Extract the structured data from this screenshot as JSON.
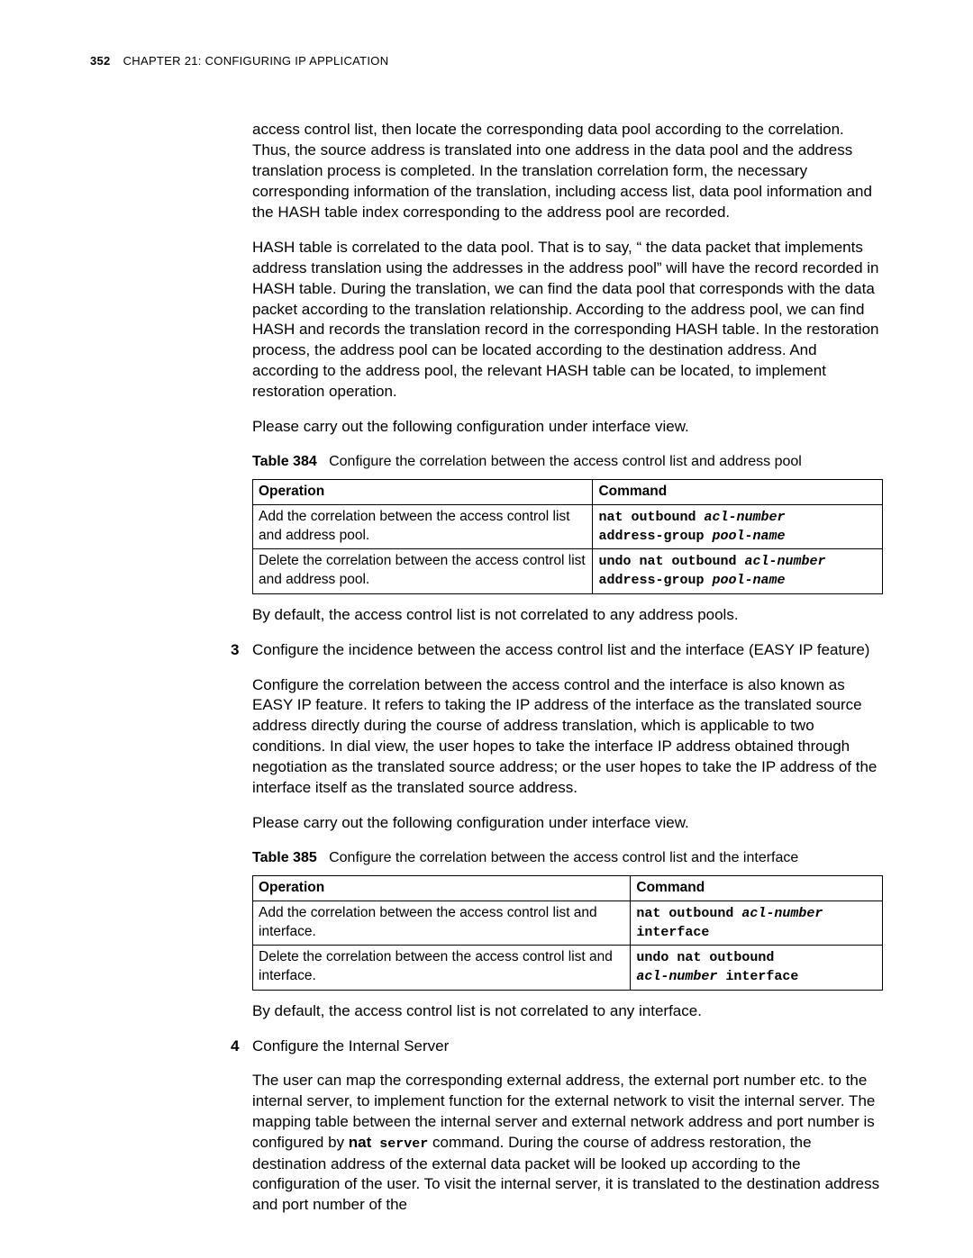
{
  "header": {
    "page_number": "352",
    "chapter_label": "CHAPTER 21: CONFIGURING IP APPLICATION"
  },
  "paragraphs": {
    "p1": "access control list, then locate the corresponding data pool according to the correlation. Thus, the source address is translated into one address in the data pool and the address translation process is completed. In the translation correlation form, the necessary corresponding information of the translation, including access list, data pool information and the HASH table index corresponding to the address pool are recorded.",
    "p2": "HASH table is correlated to the data pool. That is to say, “ the data packet that implements address translation using the addresses in the address pool” will have the record recorded in HASH table. During the translation, we can find the data pool that corresponds with the data packet according to the translation relationship. According to the address pool, we can find HASH and records the translation record in the corresponding HASH table. In the restoration process, the address pool can be located according to the destination address. And according to the address pool, the relevant HASH table can be located, to implement restoration operation.",
    "p3": "Please carry out the following configuration under interface view.",
    "p4": "By default, the access control list is not correlated to any address pools.",
    "p5": "Configure the incidence between the access control list and the interface (EASY IP feature)",
    "p6": "Configure the correlation between the access control and the interface is also known as EASY IP feature. It refers to taking the IP address of the interface as the translated source address directly during the course of address translation, which is applicable to two conditions. In dial view, the user hopes to take the interface IP address obtained through negotiation as the translated source address; or the user hopes to take the IP address of the interface itself as the translated source address.",
    "p7": "Please carry out the following configuration under interface view.",
    "p8": "By default, the access control list is not correlated to any interface.",
    "p9": "Configure the Internal Server",
    "p10_prefix": "The user can map the corresponding external address, the external port number etc. to the internal server, to implement function for the external network to visit the internal server. The mapping table between the internal server and external network address and port number is configured by ",
    "p10_nat": "nat",
    "p10_server": " server",
    "p10_suffix": " command. During the course of address restoration, the destination address of the external data packet will be looked up according to the configuration of the user. To visit the internal server, it is translated to the destination address and port number of the"
  },
  "numbers": {
    "n3": "3",
    "n4": "4"
  },
  "table384": {
    "caption_label": "Table 384",
    "caption_text": "Configure the correlation between the access control list and address pool",
    "h1": "Operation",
    "h2": "Command",
    "r1c1": "Add the correlation between the access control list and address pool.",
    "r1c2_a": "nat outbound ",
    "r1c2_b": "acl-number",
    "r1c2_c": " address-group ",
    "r1c2_d": "pool-name",
    "r2c1": "Delete the correlation between the access control list and address pool.",
    "r2c2_a": "undo nat outbound ",
    "r2c2_b": "acl-number",
    "r2c2_c": " address-group ",
    "r2c2_d": "pool-name",
    "col1_width": "54%"
  },
  "table385": {
    "caption_label": "Table 385",
    "caption_text": "Configure the correlation between the access control list and the interface",
    "h1": "Operation",
    "h2": "Command",
    "r1c1": "Add the correlation between the access control list and interface.",
    "r1c2_a": "nat outbound ",
    "r1c2_b": "acl-number",
    "r1c2_c": " interface",
    "r2c1": "Delete the correlation between the access control list and interface.",
    "r2c2_a": "undo nat outbound ",
    "r2c2_b": "acl-number",
    "r2c2_c": " interface",
    "col1_width": "60%"
  }
}
